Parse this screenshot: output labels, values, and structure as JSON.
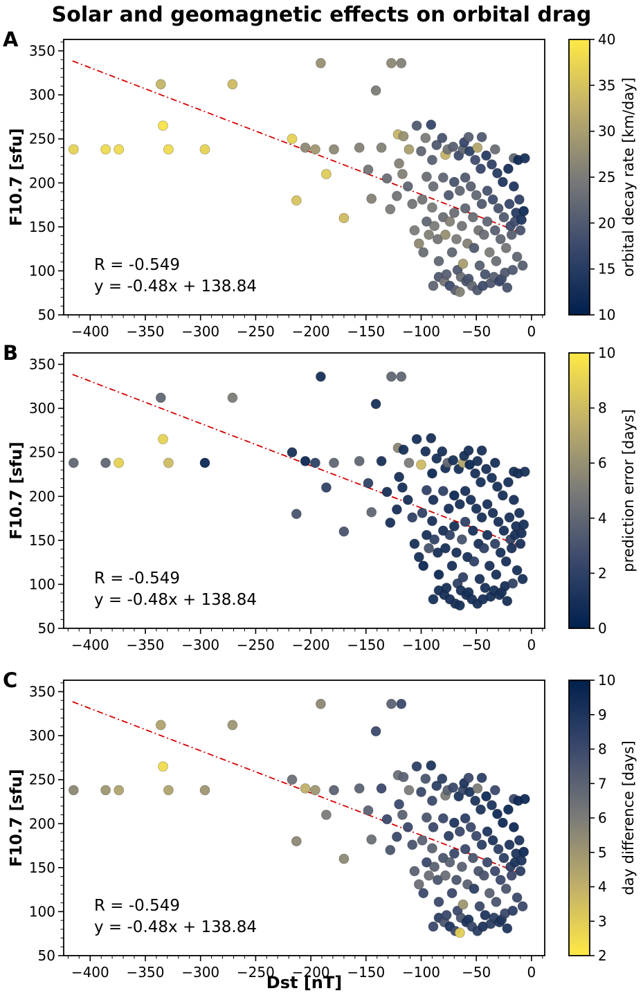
{
  "title": "Solar and geomagnetic effects on orbital drag",
  "chart_data": {
    "type": "scatter",
    "title": "Solar and geomagnetic effects on orbital drag",
    "xlabel": "Dst [nT]",
    "ylabel": "F10.7 [sfu]",
    "xlim": [
      -424,
      12
    ],
    "ylim": [
      50,
      363
    ],
    "xticks": [
      -400,
      -350,
      -300,
      -250,
      -200,
      -150,
      -100,
      -50,
      0
    ],
    "yticks": [
      50,
      100,
      150,
      200,
      250,
      300,
      350
    ],
    "annotation_R": "R = -0.549",
    "annotation_fit": "y = -0.48x + 138.84",
    "fit": {
      "slope": -0.48,
      "intercept": 138.84,
      "x_start": -416,
      "x_end": -9
    },
    "fit_line_color": "#d40000",
    "colormap": {
      "name": "cividis",
      "anchors": [
        [
          0,
          "#00204d"
        ],
        [
          0.25,
          "#3b496c"
        ],
        [
          0.5,
          "#7b7b78"
        ],
        [
          0.75,
          "#c0b069"
        ],
        [
          1,
          "#ffe945"
        ]
      ]
    },
    "panels": [
      {
        "label": "A",
        "colorbar_label": "orbital decay rate [km/day]",
        "cmin": 10,
        "cmax": 40,
        "cticks": [
          10,
          15,
          20,
          25,
          30,
          35,
          40
        ],
        "reverse": false
      },
      {
        "label": "B",
        "colorbar_label": "prediction error [days]",
        "cmin": 0,
        "cmax": 10,
        "cticks": [
          0,
          2,
          4,
          6,
          8,
          10
        ],
        "reverse": false
      },
      {
        "label": "C",
        "colorbar_label": "day difference [days]",
        "cmin": 2,
        "cmax": 10,
        "cticks": [
          2,
          3,
          4,
          5,
          6,
          7,
          8,
          9,
          10
        ],
        "reverse": true
      }
    ],
    "point_columns": [
      "dst_nT",
      "f107_sfu",
      "orbital_decay_rate_km_day",
      "prediction_error_days",
      "day_difference_days"
    ],
    "points": [
      [
        -415,
        238,
        37,
        4,
        5.5
      ],
      [
        -386,
        238,
        38,
        4,
        5
      ],
      [
        -374,
        238,
        38,
        9,
        4.5
      ],
      [
        -336,
        312,
        33,
        4,
        4.5
      ],
      [
        -334,
        265,
        39,
        9,
        2.5
      ],
      [
        -329,
        238,
        38,
        8,
        4.5
      ],
      [
        -296,
        238,
        37,
        0.5,
        5
      ],
      [
        -271,
        312,
        34,
        5,
        5
      ],
      [
        -217,
        250,
        37,
        1,
        6.5
      ],
      [
        -213,
        180,
        35,
        3,
        5.5
      ],
      [
        -205,
        240,
        27,
        0.5,
        4
      ],
      [
        -196,
        238,
        29,
        2,
        5
      ],
      [
        -191,
        336,
        28,
        1,
        5.5
      ],
      [
        -186,
        210,
        36,
        2,
        6
      ],
      [
        -179,
        238,
        27,
        4,
        7
      ],
      [
        -170,
        160,
        34,
        3,
        5.5
      ],
      [
        -156,
        240,
        26,
        4,
        7
      ],
      [
        -148,
        215,
        24,
        2,
        7
      ],
      [
        -145,
        182,
        26,
        4,
        6.5
      ],
      [
        -141,
        305,
        25,
        1,
        8
      ],
      [
        -136,
        240,
        26,
        1,
        8
      ],
      [
        -131,
        205,
        23,
        1,
        8
      ],
      [
        -128,
        170,
        25,
        1,
        7.5
      ],
      [
        -127,
        336,
        27,
        4,
        7
      ],
      [
        -122,
        185,
        24,
        1,
        8
      ],
      [
        -121,
        255,
        33,
        5.5,
        6.5
      ],
      [
        -120,
        222,
        26,
        1,
        8
      ],
      [
        -118,
        336,
        26,
        4,
        8
      ],
      [
        -117,
        210,
        26,
        1,
        7
      ],
      [
        -116,
        253,
        28,
        1,
        7
      ],
      [
        -112,
        196,
        22,
        1,
        8
      ],
      [
        -111,
        238,
        30,
        5,
        6
      ],
      [
        -108,
        176,
        24,
        2,
        7.5
      ],
      [
        -106,
        146,
        25,
        1,
        7
      ],
      [
        -104,
        265,
        20,
        1,
        8.5
      ],
      [
        -102,
        131,
        27,
        1,
        6.5
      ],
      [
        -100,
        236,
        22,
        8,
        8
      ],
      [
        -99,
        181,
        24,
        2,
        7
      ],
      [
        -98,
        121,
        23,
        0.5,
        8
      ],
      [
        -96,
        251,
        25,
        1,
        7.5
      ],
      [
        -95,
        207,
        23,
        2,
        7.5
      ],
      [
        -95,
        156,
        22,
        1,
        8
      ],
      [
        -93,
        141,
        26,
        3,
        6.5
      ],
      [
        -91,
        266,
        17,
        1,
        9
      ],
      [
        -90,
        226,
        21,
        0.5,
        8
      ],
      [
        -90,
        172,
        25,
        1,
        7
      ],
      [
        -89,
        196,
        23,
        1,
        8
      ],
      [
        -89,
        83,
        22,
        1,
        8
      ],
      [
        -88,
        151,
        25,
        2,
        7
      ],
      [
        -86,
        243,
        20,
        1,
        8.5
      ],
      [
        -85,
        136,
        24,
        1,
        7.5
      ],
      [
        -84,
        111,
        22,
        0.5,
        8
      ],
      [
        -84,
        93,
        20,
        1,
        8.5
      ],
      [
        -81,
        251,
        19,
        1,
        8.5
      ],
      [
        -80,
        206,
        22,
        2,
        8
      ],
      [
        -80,
        161,
        23,
        1,
        7.5
      ],
      [
        -79,
        88,
        24,
        1,
        7.5
      ],
      [
        -78,
        232,
        33,
        1,
        6
      ],
      [
        -78,
        141,
        28,
        1,
        6.5
      ],
      [
        -77,
        96,
        21,
        1,
        8
      ],
      [
        -76,
        238,
        24,
        4,
        7
      ],
      [
        -75,
        186,
        20,
        1,
        8.5
      ],
      [
        -74,
        156,
        26,
        2,
        7
      ],
      [
        -74,
        83,
        18,
        1,
        9
      ],
      [
        -72,
        121,
        22,
        1,
        8
      ],
      [
        -71,
        241,
        21,
        1,
        8
      ],
      [
        -70,
        201,
        19,
        0.5,
        9
      ],
      [
        -70,
        166,
        23,
        1,
        8
      ],
      [
        -69,
        78,
        21,
        1,
        8
      ],
      [
        -68,
        136,
        25,
        1,
        7.5
      ],
      [
        -67,
        101,
        20,
        2,
        8
      ],
      [
        -66,
        231,
        18,
        1,
        9
      ],
      [
        -65,
        191,
        22,
        1,
        8
      ],
      [
        -65,
        76,
        26,
        1,
        3
      ],
      [
        -64,
        93,
        23,
        1,
        7.5
      ],
      [
        -63,
        151,
        24,
        3,
        7
      ],
      [
        -62,
        238,
        22,
        7,
        8
      ],
      [
        -62,
        108,
        30,
        2,
        5
      ],
      [
        -61,
        246,
        17,
        1,
        9
      ],
      [
        -60,
        206,
        20,
        1,
        8.5
      ],
      [
        -60,
        171,
        22,
        2,
        8
      ],
      [
        -59,
        88,
        19,
        1,
        9
      ],
      [
        -58,
        131,
        26,
        1,
        7
      ],
      [
        -57,
        252,
        21,
        1,
        8
      ],
      [
        -57,
        91,
        19,
        1,
        9
      ],
      [
        -56,
        236,
        16,
        0.5,
        9
      ],
      [
        -55,
        196,
        21,
        1,
        8
      ],
      [
        -54,
        83,
        22,
        1,
        8
      ],
      [
        -53,
        161,
        23,
        1,
        7.5
      ],
      [
        -52,
        126,
        20,
        2,
        8.5
      ],
      [
        -51,
        226,
        18,
        1,
        9
      ],
      [
        -50,
        186,
        22,
        1,
        8
      ],
      [
        -49,
        240,
        31,
        1,
        6
      ],
      [
        -49,
        78,
        20,
        1,
        8.5
      ],
      [
        -48,
        146,
        24,
        1,
        7.5
      ],
      [
        -47,
        106,
        21,
        1,
        8
      ],
      [
        -46,
        216,
        17,
        1,
        9
      ],
      [
        -45,
        252,
        20,
        1,
        8.5
      ],
      [
        -45,
        176,
        20,
        1,
        8.5
      ],
      [
        -44,
        83,
        18,
        1,
        9
      ],
      [
        -43,
        141,
        23,
        2,
        7.5
      ],
      [
        -42,
        96,
        19,
        1,
        9
      ],
      [
        -41,
        231,
        15,
        1,
        9.5
      ],
      [
        -40,
        191,
        19,
        1,
        9
      ],
      [
        -40,
        156,
        22,
        1,
        8
      ],
      [
        -38,
        121,
        25,
        1,
        7
      ],
      [
        -37,
        86,
        20,
        1,
        8.5
      ],
      [
        -36,
        221,
        16,
        1,
        9
      ],
      [
        -35,
        181,
        18,
        1,
        9
      ],
      [
        -34,
        93,
        21,
        1,
        8.5
      ],
      [
        -33,
        238,
        23,
        1,
        8
      ],
      [
        -33,
        146,
        21,
        2,
        8
      ],
      [
        -32,
        111,
        23,
        1,
        7.5
      ],
      [
        -31,
        211,
        15,
        1,
        9.5
      ],
      [
        -30,
        171,
        19,
        1,
        8.5
      ],
      [
        -29,
        88,
        17,
        1,
        9
      ],
      [
        -28,
        136,
        22,
        1,
        8
      ],
      [
        -27,
        91,
        18,
        1,
        9
      ],
      [
        -26,
        201,
        14,
        1,
        9.5
      ],
      [
        -25,
        161,
        20,
        1,
        8.5
      ],
      [
        -24,
        98,
        20,
        1,
        8
      ],
      [
        -23,
        126,
        24,
        1,
        7.5
      ],
      [
        -22,
        81,
        19,
        1,
        9
      ],
      [
        -21,
        216,
        13,
        1,
        9.5
      ],
      [
        -20,
        176,
        17,
        1,
        9
      ],
      [
        -19,
        151,
        18,
        2,
        8.5
      ],
      [
        -18,
        141,
        21,
        1,
        8
      ],
      [
        -17,
        101,
        20,
        2,
        8.5
      ],
      [
        -16,
        228,
        22,
        1,
        8
      ],
      [
        -16,
        196,
        14,
        1,
        9.5
      ],
      [
        -15,
        156,
        18,
        1,
        9
      ],
      [
        -14,
        166,
        15,
        1,
        9
      ],
      [
        -13,
        116,
        22,
        1,
        8
      ],
      [
        -12,
        226,
        12,
        1,
        9.5
      ],
      [
        -11,
        181,
        16,
        1,
        9
      ],
      [
        -10,
        146,
        19,
        1,
        8.5
      ],
      [
        -9,
        158,
        14,
        1,
        9
      ],
      [
        -8,
        106,
        21,
        1,
        8
      ],
      [
        -7,
        168,
        12,
        1,
        9.5
      ],
      [
        -6,
        228,
        13,
        1,
        9.5
      ]
    ]
  }
}
